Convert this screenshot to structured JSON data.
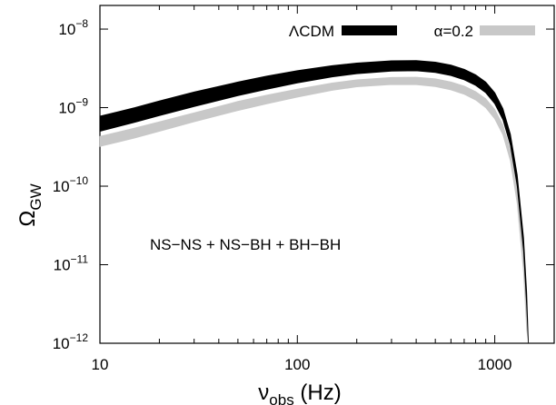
{
  "chart_data": {
    "type": "area",
    "title": "",
    "xlabel": {
      "base": "ν",
      "sub": "obs",
      "unit": " (Hz)"
    },
    "ylabel": {
      "base": "Ω",
      "sub": "GW"
    },
    "x_scale": "log",
    "y_scale": "log",
    "xlim": [
      10,
      2000
    ],
    "ylim": [
      1e-12,
      2e-08
    ],
    "x_ticks": [
      {
        "value": 10,
        "label": "10"
      },
      {
        "value": 100,
        "label": "100"
      },
      {
        "value": 1000,
        "label": "1000"
      }
    ],
    "y_ticks": [
      {
        "value": 1e-12,
        "base": "10",
        "exp": "−12"
      },
      {
        "value": 1e-11,
        "base": "10",
        "exp": "−11"
      },
      {
        "value": 1e-10,
        "base": "10",
        "exp": "−10"
      },
      {
        "value": 1e-09,
        "base": "10",
        "exp": "−9"
      },
      {
        "value": 1e-08,
        "base": "10",
        "exp": "−8"
      }
    ],
    "grid": false,
    "legend_position": "top-right",
    "annotation": "NS−NS + NS−BH + BH−BH",
    "series": [
      {
        "name": "α=0.2",
        "color": "#c8c8c8",
        "x": [
          10,
          15,
          20,
          30,
          50,
          70,
          100,
          150,
          200,
          300,
          400,
          500,
          600,
          700,
          800,
          900,
          1000,
          1100,
          1200,
          1300,
          1400,
          1450,
          1480
        ],
        "lower": [
          3.2e-10,
          4.1e-10,
          5e-10,
          6.6e-10,
          9.2e-10,
          1.12e-09,
          1.36e-09,
          1.66e-09,
          1.84e-09,
          1.97e-09,
          1.96e-09,
          1.85e-09,
          1.68e-09,
          1.48e-09,
          1.25e-09,
          1e-09,
          7.2e-10,
          4.5e-10,
          2.1e-10,
          6e-11,
          8e-12,
          1.5e-12,
          1e-12
        ],
        "upper": [
          4.3e-10,
          5.5e-10,
          6.6e-10,
          8.6e-10,
          1.2e-09,
          1.44e-09,
          1.72e-09,
          2.06e-09,
          2.26e-09,
          2.42e-09,
          2.44e-09,
          2.33e-09,
          2.12e-09,
          1.88e-09,
          1.6e-09,
          1.3e-09,
          9.5e-10,
          6e-10,
          2.9e-10,
          9e-11,
          1.3e-11,
          2.5e-12,
          1e-12
        ]
      },
      {
        "name": "ΛCDM",
        "color": "#000000",
        "x": [
          10,
          15,
          20,
          30,
          50,
          70,
          100,
          150,
          200,
          300,
          400,
          500,
          600,
          700,
          800,
          900,
          1000,
          1100,
          1200,
          1300,
          1400,
          1450,
          1480
        ],
        "lower": [
          5e-10,
          6.5e-10,
          7.9e-10,
          1.03e-09,
          1.42e-09,
          1.71e-09,
          2.06e-09,
          2.46e-09,
          2.7e-09,
          2.92e-09,
          2.94e-09,
          2.8e-09,
          2.56e-09,
          2.26e-09,
          1.92e-09,
          1.55e-09,
          1.12e-09,
          7e-10,
          3.3e-10,
          1e-10,
          1.5e-11,
          3e-12,
          1e-12
        ],
        "upper": [
          7.8e-10,
          1e-09,
          1.22e-09,
          1.58e-09,
          2.12e-09,
          2.52e-09,
          2.96e-09,
          3.42e-09,
          3.7e-09,
          3.95e-09,
          3.98e-09,
          3.8e-09,
          3.48e-09,
          3.08e-09,
          2.62e-09,
          2.12e-09,
          1.55e-09,
          9.7e-10,
          4.6e-10,
          1.4e-10,
          2.2e-11,
          4.5e-12,
          1e-12
        ]
      }
    ]
  }
}
